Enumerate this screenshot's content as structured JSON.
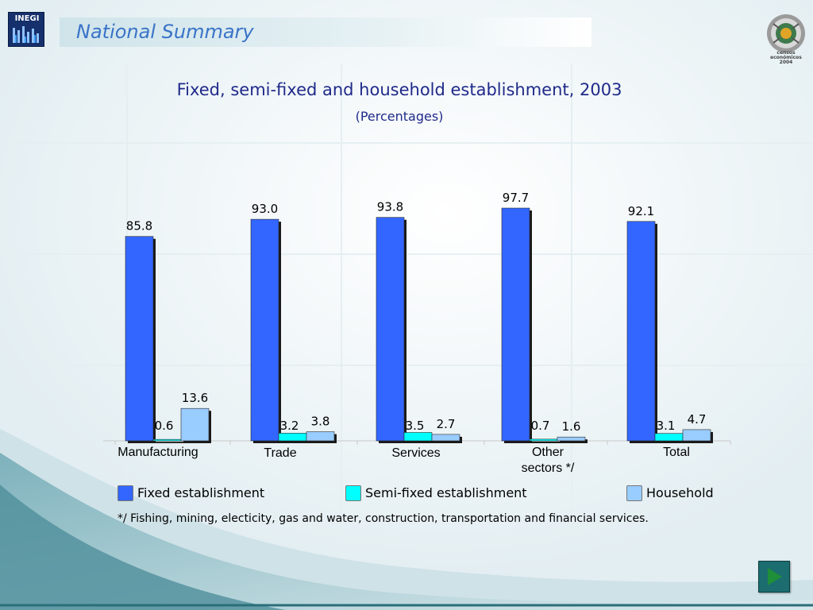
{
  "header": {
    "section_title": "National Summary",
    "left_logo_text": "INEGI",
    "right_logo_text": [
      "censos",
      "económicos",
      "2004"
    ]
  },
  "chart_data": {
    "type": "bar",
    "title": "Fixed, semi-fixed and household establishment, 2003",
    "subtitle": "(Percentages)",
    "categories": [
      "Manufacturing",
      "Trade",
      "Services",
      "Other sectors */",
      "Total"
    ],
    "category_display": [
      [
        "Manufacturing"
      ],
      [
        "Trade"
      ],
      [
        "Services"
      ],
      [
        "Other",
        "sectors */"
      ],
      [
        "Total"
      ]
    ],
    "series": [
      {
        "name": "Fixed establishment",
        "values": [
          85.8,
          93.0,
          93.8,
          97.7,
          92.1
        ],
        "color": "#3366ff"
      },
      {
        "name": "Semi-fixed establishment",
        "values": [
          0.6,
          3.2,
          3.5,
          0.7,
          3.1
        ],
        "color": "#00ffff"
      },
      {
        "name": "Household",
        "values": [
          13.6,
          3.8,
          2.7,
          1.6,
          4.7
        ],
        "color": "#99ccff"
      }
    ],
    "value_labels": [
      [
        "85.8",
        "93.0",
        "93.8",
        "97.7",
        "92.1"
      ],
      [
        "0.6",
        "3.2",
        "3.5",
        "0.7",
        "3.1"
      ],
      [
        "13.6",
        "3.8",
        "2.7",
        "1.6",
        "4.7"
      ]
    ],
    "ylim": [
      0,
      100
    ],
    "grid": false,
    "legend_position": "bottom"
  },
  "footnote": "*/ Fishing, mining, electicity, gas and water, construction, transportation and financial services.",
  "navigation": {
    "next_icon": "play-arrow-icon"
  }
}
